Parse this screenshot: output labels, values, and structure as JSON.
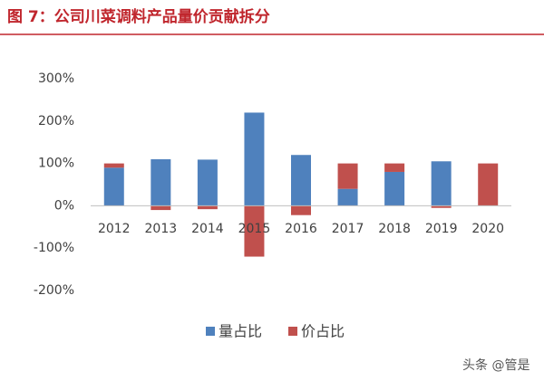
{
  "chart_data": {
    "type": "bar",
    "stacked": true,
    "title": "图 7：公司川菜调料产品量价贡献拆分",
    "categories": [
      "2012",
      "2013",
      "2014",
      "2015",
      "2016",
      "2017",
      "2018",
      "2019",
      "2020"
    ],
    "series": [
      {
        "name": "量占比",
        "color": "#4f81bd",
        "values": [
          90,
          110,
          109,
          220,
          120,
          40,
          80,
          105,
          0
        ]
      },
      {
        "name": "价占比",
        "color": "#c0504d",
        "values": [
          10,
          -10,
          -8,
          -120,
          -22,
          60,
          20,
          -5,
          100
        ]
      }
    ],
    "ylim": [
      -200,
      300
    ],
    "yticks": [
      {
        "value": -200,
        "label": "-200%"
      },
      {
        "value": -100,
        "label": "-100%"
      },
      {
        "value": 0,
        "label": "0%"
      },
      {
        "value": 100,
        "label": "100%"
      },
      {
        "value": 200,
        "label": "200%"
      },
      {
        "value": 300,
        "label": "300%"
      }
    ],
    "watermark": "头条 @管是"
  }
}
